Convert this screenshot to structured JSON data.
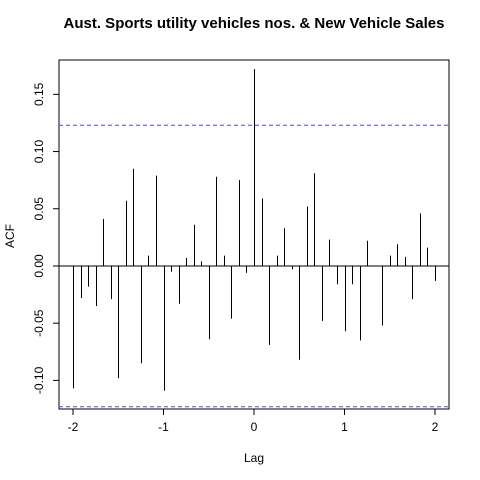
{
  "chart_data": {
    "type": "bar",
    "title": "Aust. Sports utility vehicles nos.  & New Vehicle Sales",
    "xlabel": "Lag",
    "ylabel": "ACF",
    "xlim": [
      -2.0,
      2.0
    ],
    "ylim": [
      -0.125,
      0.18
    ],
    "xticks": [
      -2,
      -1,
      0,
      1,
      2
    ],
    "xtick_labels": [
      "-2",
      "-1",
      "0",
      "1",
      "2"
    ],
    "yticks": [
      -0.1,
      -0.05,
      0.0,
      0.05,
      0.1,
      0.15
    ],
    "ytick_labels": [
      "-0.10",
      "-0.05",
      "0.00",
      "0.05",
      "0.10",
      "0.15"
    ],
    "zero_line_color": "#000000",
    "confidence_limit": 0.123,
    "confidence_line_color": "#4a4ad6",
    "grid": false,
    "lags": [
      -2.0,
      -1.917,
      -1.833,
      -1.75,
      -1.667,
      -1.583,
      -1.5,
      -1.417,
      -1.333,
      -1.25,
      -1.167,
      -1.083,
      -1.0,
      -0.917,
      -0.833,
      -0.75,
      -0.667,
      -0.583,
      -0.5,
      -0.417,
      -0.333,
      -0.25,
      -0.167,
      -0.083,
      0.0,
      0.083,
      0.167,
      0.25,
      0.333,
      0.417,
      0.5,
      0.583,
      0.667,
      0.75,
      0.833,
      0.917,
      1.0,
      1.083,
      1.167,
      1.25,
      1.333,
      1.417,
      1.5,
      1.583,
      1.667,
      1.75,
      1.833,
      1.917,
      2.0
    ],
    "acf": [
      -0.107,
      -0.028,
      -0.018,
      -0.035,
      0.041,
      -0.029,
      -0.098,
      0.057,
      0.085,
      -0.085,
      0.009,
      0.079,
      -0.109,
      -0.005,
      -0.033,
      0.007,
      0.036,
      0.004,
      -0.064,
      0.078,
      0.009,
      -0.046,
      0.075,
      -0.006,
      0.172,
      0.059,
      -0.069,
      0.009,
      0.033,
      -0.003,
      -0.082,
      0.052,
      0.081,
      -0.048,
      0.023,
      -0.016,
      -0.057,
      -0.016,
      -0.065,
      0.022,
      0.0,
      -0.052,
      0.009,
      0.019,
      0.008,
      -0.029,
      0.046,
      0.016,
      -0.013
    ]
  }
}
